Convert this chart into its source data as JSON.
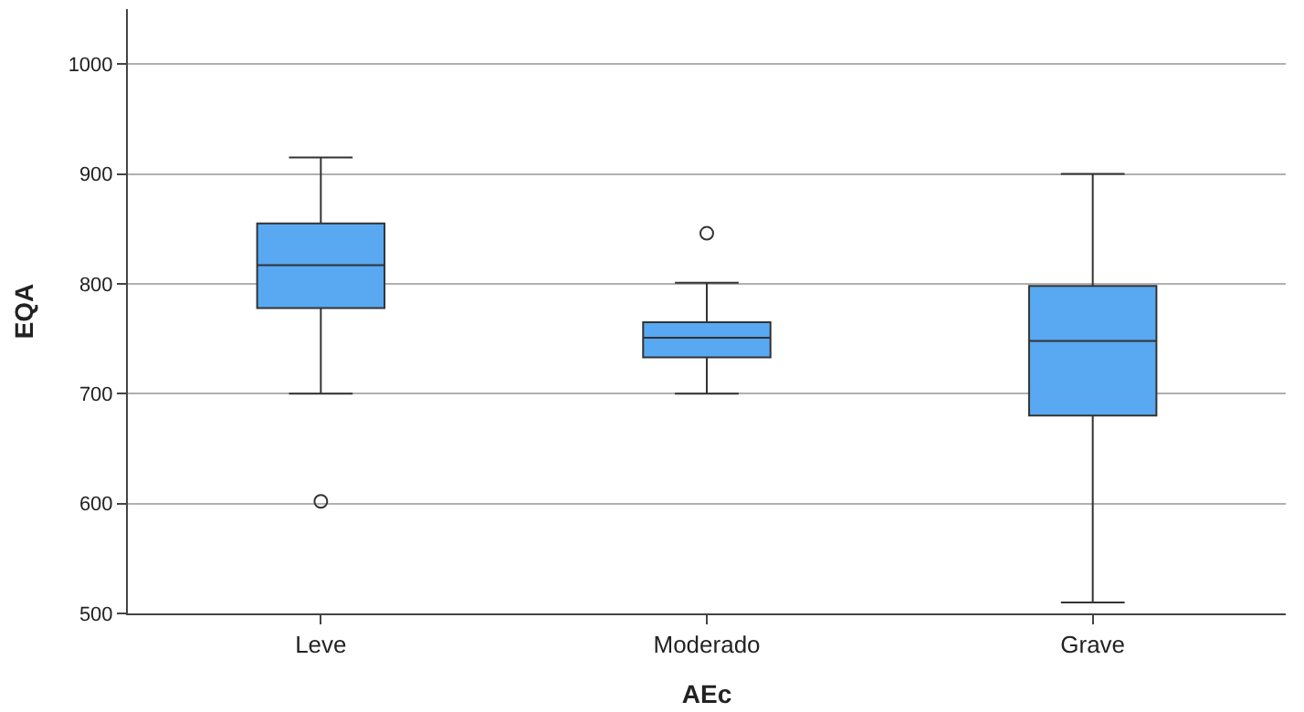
{
  "chart_data": {
    "type": "box",
    "xlabel": "AEc",
    "ylabel": "EQA",
    "categories": [
      "Leve",
      "Moderado",
      "Grave"
    ],
    "series": [
      {
        "color": "#58a8f2",
        "boxes": [
          {
            "low": 700,
            "q1": 778,
            "median": 817,
            "q3": 855,
            "high": 915,
            "outliers": [
              602
            ]
          },
          {
            "low": 700,
            "q1": 733,
            "median": 751,
            "q3": 765,
            "high": 801,
            "outliers": [
              846
            ]
          },
          {
            "low": 510,
            "q1": 680,
            "median": 748,
            "q3": 798,
            "high": 900
          }
        ]
      }
    ],
    "ylim": [
      500,
      1050
    ],
    "yticks": [
      500,
      600,
      700,
      800,
      900,
      1000
    ],
    "grid": "y",
    "marker": "circle"
  }
}
